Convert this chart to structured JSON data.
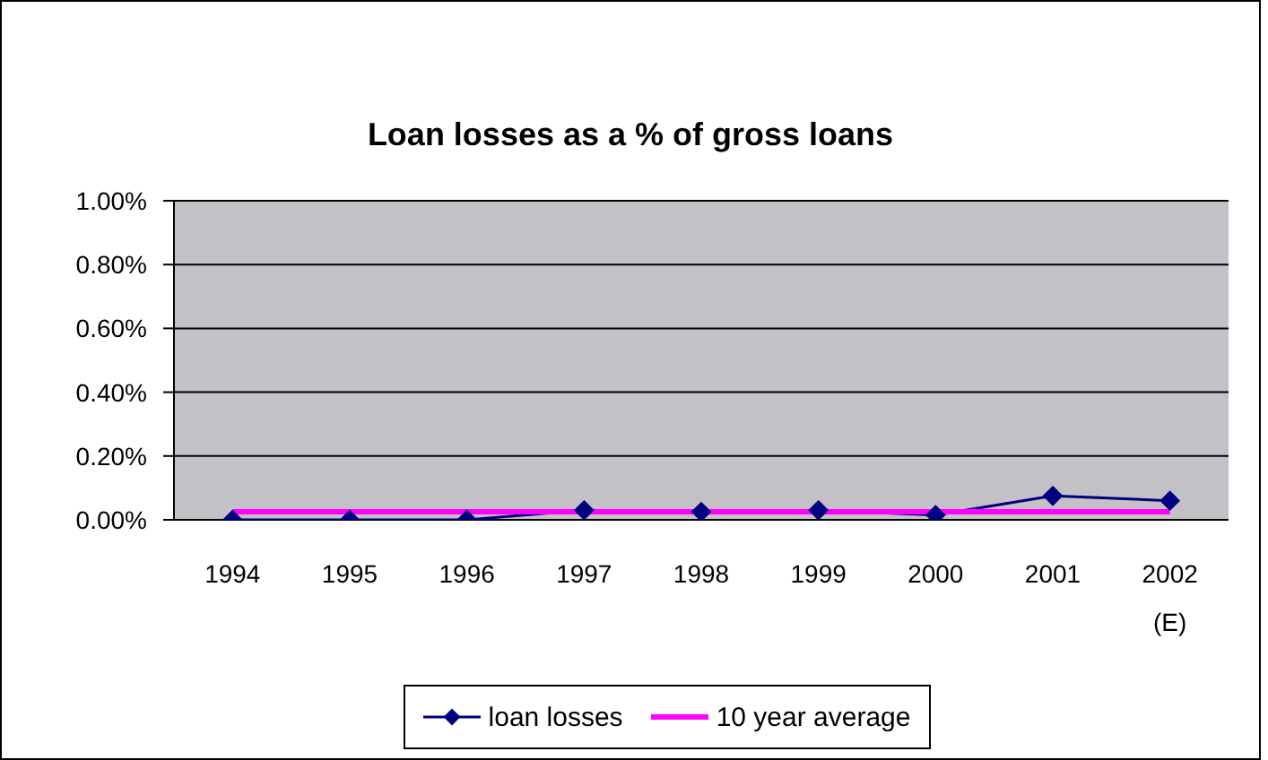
{
  "chart_data": {
    "type": "line",
    "title": "Loan losses as a % of gross loans",
    "categories": [
      "1994",
      "1995",
      "1996",
      "1997",
      "1998",
      "1999",
      "2000",
      "2001",
      "2002 (E)"
    ],
    "series": [
      {
        "name": "loan losses",
        "color": "#000080",
        "values": [
          0,
          0,
          0,
          0.03,
          0.025,
          0.03,
          0.015,
          0.075,
          0.06
        ]
      },
      {
        "name": "10 year average",
        "color": "#ff00ff",
        "marker": "none",
        "values": [
          0.025,
          0.025,
          0.025,
          0.025,
          0.025,
          0.025,
          0.025,
          0.025,
          0.025
        ]
      }
    ],
    "ylim": [
      0,
      1
    ],
    "yticks": [
      {
        "value": 0,
        "label": "0.00%"
      },
      {
        "value": 0.2,
        "label": "0.20%"
      },
      {
        "value": 0.4,
        "label": "0.40%"
      },
      {
        "value": 0.6,
        "label": "0.60%"
      },
      {
        "value": 0.8,
        "label": "0.80%"
      },
      {
        "value": 1,
        "label": "1.00%"
      }
    ],
    "grid": "y",
    "legend": "bottom",
    "marker": "diamond"
  }
}
